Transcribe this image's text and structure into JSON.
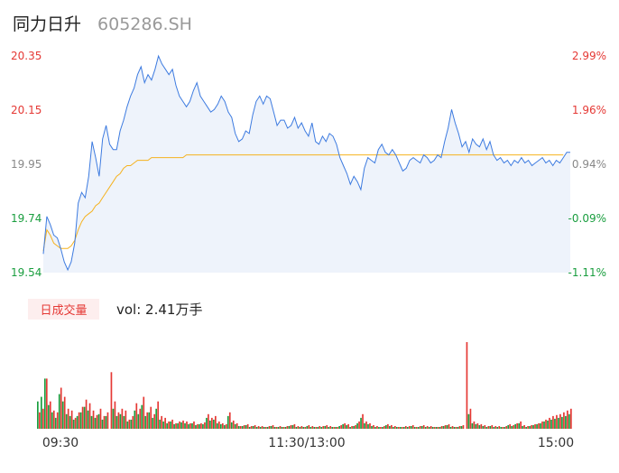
{
  "header": {
    "name": "同力日升",
    "code": "605286.SH"
  },
  "volume": {
    "badge": "日成交量",
    "label": "vol: 2.41万手"
  },
  "colors": {
    "up": "#e53935",
    "down": "#1a9e3f",
    "price": "#3d7be0",
    "avg": "#f5b21f",
    "fill": "#eef3fb",
    "neutral": "#888888"
  },
  "chart_data": [
    {
      "type": "line",
      "ylim": [
        19.54,
        20.35
      ],
      "y_ticks_left": [
        "20.35",
        "20.15",
        "19.95",
        "19.74",
        "19.54"
      ],
      "y_ticks_right": [
        "2.99%",
        "1.96%",
        "0.94%",
        "-0.09%",
        "-1.11%"
      ],
      "x_ticks": [
        "09:30",
        "11:30/13:00",
        "15:00"
      ],
      "series": [
        {
          "values": [
            19.61,
            19.75,
            19.72,
            19.68,
            19.67,
            19.63,
            19.58,
            19.55,
            19.58,
            19.65,
            19.8,
            19.84,
            19.82,
            19.9,
            20.03,
            19.97,
            19.9,
            20.04,
            20.09,
            20.02,
            20.0,
            20.0,
            20.07,
            20.11,
            20.16,
            20.2,
            20.23,
            20.28,
            20.31,
            20.25,
            20.28,
            20.26,
            20.3,
            20.35,
            20.32,
            20.3,
            20.28,
            20.3,
            20.24,
            20.2,
            20.18,
            20.16,
            20.18,
            20.22,
            20.25,
            20.2,
            20.18,
            20.16,
            20.14,
            20.15,
            20.17,
            20.2,
            20.18,
            20.14,
            20.12,
            20.06,
            20.03,
            20.04,
            20.07,
            20.06,
            20.13,
            20.18,
            20.2,
            20.17,
            20.2,
            20.19,
            20.14,
            20.09,
            20.11,
            20.11,
            20.08,
            20.09,
            20.12,
            20.08,
            20.1,
            20.07,
            20.05,
            20.1,
            20.03,
            20.02,
            20.05,
            20.03,
            20.06,
            20.05,
            20.02,
            19.97,
            19.94,
            19.91,
            19.87,
            19.9,
            19.88,
            19.85,
            19.93,
            19.97,
            19.96,
            19.95,
            20.0,
            20.02,
            19.99,
            19.98,
            20.0,
            19.98,
            19.95,
            19.92,
            19.93,
            19.96,
            19.97,
            19.96,
            19.95,
            19.98,
            19.97,
            19.95,
            19.96,
            19.98,
            19.97,
            20.03,
            20.08,
            20.15,
            20.1,
            20.06,
            20.01,
            20.03,
            19.99,
            20.04,
            20.02,
            20.01,
            20.04,
            20.0,
            20.03,
            19.98,
            19.96,
            19.97,
            19.95,
            19.96,
            19.94,
            19.96,
            19.95,
            19.97,
            19.95,
            19.96,
            19.94,
            19.95,
            19.96,
            19.97,
            19.95,
            19.96,
            19.94,
            19.96,
            19.95,
            19.97,
            19.99,
            19.99
          ]
        },
        {
          "values": [
            19.62,
            19.7,
            19.68,
            19.65,
            19.64,
            19.63,
            19.63,
            19.63,
            19.64,
            19.66,
            19.7,
            19.73,
            19.75,
            19.76,
            19.77,
            19.79,
            19.8,
            19.82,
            19.84,
            19.86,
            19.88,
            19.9,
            19.91,
            19.93,
            19.94,
            19.94,
            19.95,
            19.96,
            19.96,
            19.96,
            19.96,
            19.97,
            19.97,
            19.97,
            19.97,
            19.97,
            19.97,
            19.97,
            19.97,
            19.97,
            19.97,
            19.98,
            19.98,
            19.98,
            19.98,
            19.98,
            19.98,
            19.98,
            19.98,
            19.98,
            19.98,
            19.98,
            19.98,
            19.98,
            19.98,
            19.98,
            19.98,
            19.98,
            19.98,
            19.98,
            19.98,
            19.98,
            19.98,
            19.98,
            19.98,
            19.98,
            19.98,
            19.98,
            19.98,
            19.98,
            19.98,
            19.98,
            19.98,
            19.98,
            19.98,
            19.98,
            19.98,
            19.98,
            19.98,
            19.98,
            19.98,
            19.98,
            19.98,
            19.98,
            19.98,
            19.98,
            19.98,
            19.98,
            19.98,
            19.98,
            19.98,
            19.98,
            19.98,
            19.98,
            19.98,
            19.98,
            19.98,
            19.98,
            19.98,
            19.98,
            19.98,
            19.98,
            19.98,
            19.98,
            19.98,
            19.98,
            19.98,
            19.98,
            19.98,
            19.98,
            19.98,
            19.98,
            19.98,
            19.98,
            19.98,
            19.98,
            19.98,
            19.98,
            19.98,
            19.98,
            19.98,
            19.98,
            19.98,
            19.98,
            19.98,
            19.98,
            19.98,
            19.98,
            19.98,
            19.98,
            19.98,
            19.98,
            19.98,
            19.98,
            19.98,
            19.98,
            19.98,
            19.98,
            19.98,
            19.98,
            19.98,
            19.98,
            19.98,
            19.98,
            19.98,
            19.98,
            19.98,
            19.98,
            19.98,
            19.98
          ]
        }
      ]
    },
    {
      "type": "bar",
      "series": [
        {
          "values": [
            18,
            22,
            55,
            30,
            20,
            18,
            45,
            35,
            22,
            20,
            12,
            18,
            24,
            32,
            28,
            20,
            15,
            22,
            14,
            18,
            62,
            30,
            18,
            22,
            20,
            10,
            14,
            28,
            22,
            35,
            18,
            24,
            16,
            30,
            14,
            12,
            8,
            10,
            6,
            8,
            9,
            8,
            6,
            8,
            5,
            6,
            7,
            16,
            12,
            14,
            8,
            6,
            5,
            18,
            9,
            6,
            3,
            4,
            5,
            3,
            4,
            3,
            3,
            2,
            3,
            4,
            2,
            3,
            2,
            3,
            4,
            5,
            3,
            3,
            2,
            4,
            3,
            2,
            3,
            3,
            4,
            3,
            2,
            2,
            4,
            6,
            5,
            3,
            4,
            8,
            16,
            8,
            6,
            4,
            3,
            2,
            3,
            5,
            4,
            3,
            2,
            2,
            3,
            3,
            4,
            2,
            3,
            4,
            3,
            3,
            2,
            2,
            3,
            4,
            5,
            3,
            2,
            3,
            4,
            95,
            22,
            8,
            6,
            5,
            4,
            3,
            4,
            3,
            3,
            2,
            3,
            5,
            4,
            6,
            8,
            4,
            3,
            4,
            5,
            6,
            8,
            10,
            12,
            14,
            15,
            16,
            18,
            20,
            22
          ]
        },
        {
          "values": [
            30,
            35,
            55,
            26,
            18,
            12,
            38,
            30,
            16,
            14,
            10,
            14,
            18,
            24,
            20,
            14,
            12,
            16,
            10,
            14,
            0,
            22,
            14,
            16,
            14,
            8,
            10,
            20,
            16,
            26,
            14,
            18,
            12,
            22,
            10,
            8,
            6,
            8,
            5,
            6,
            7,
            6,
            5,
            6,
            4,
            5,
            5,
            12,
            9,
            10,
            6,
            5,
            4,
            14,
            7,
            5,
            3,
            3,
            4,
            2,
            3,
            2,
            2,
            2,
            2,
            3,
            2,
            2,
            2,
            2,
            3,
            4,
            2,
            2,
            2,
            3,
            2,
            2,
            2,
            2,
            3,
            2,
            2,
            2,
            3,
            5,
            4,
            2,
            3,
            6,
            12,
            6,
            5,
            3,
            2,
            2,
            2,
            4,
            3,
            2,
            2,
            2,
            2,
            2,
            3,
            2,
            2,
            3,
            2,
            2,
            2,
            2,
            2,
            3,
            4,
            2,
            2,
            2,
            3,
            0,
            16,
            6,
            5,
            4,
            3,
            2,
            3,
            2,
            2,
            2,
            2,
            4,
            3,
            5,
            6,
            3,
            2,
            3,
            4,
            5,
            6,
            8,
            9,
            10,
            11,
            12,
            13,
            14,
            16
          ]
        }
      ]
    }
  ]
}
